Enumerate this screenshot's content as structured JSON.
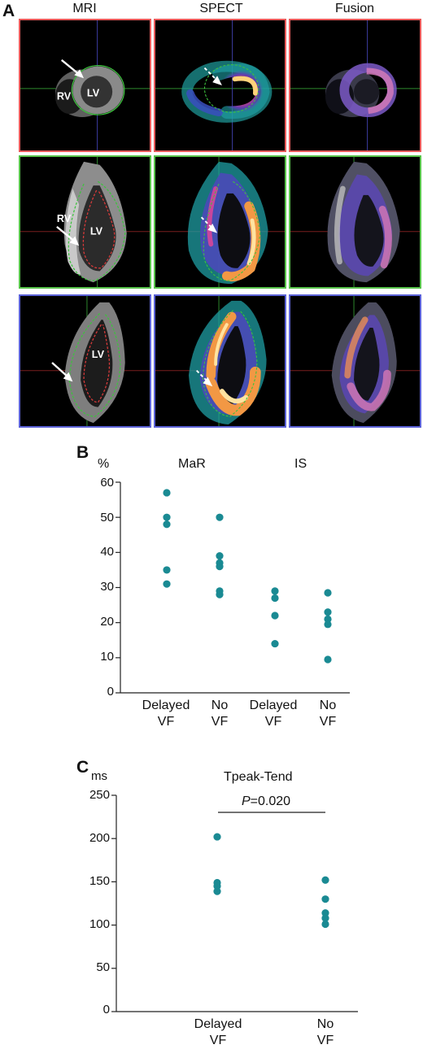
{
  "panel_a": {
    "letter": "A",
    "columns": [
      "MRI",
      "SPECT",
      "Fusion"
    ],
    "labels": {
      "lv": "LV",
      "rv": "RV"
    },
    "row_colors": [
      "#e85a5a",
      "#57c24a",
      "#5b62d6"
    ]
  },
  "panel_b": {
    "letter": "B",
    "unit": "%",
    "groups": [
      "MaR",
      "IS"
    ],
    "cat_lines": [
      [
        "Delayed",
        "VF"
      ],
      [
        "No",
        "VF"
      ],
      [
        "Delayed",
        "VF"
      ],
      [
        "No",
        "VF"
      ]
    ],
    "ticks": [
      "0",
      "10",
      "20",
      "30",
      "40",
      "50",
      "60"
    ]
  },
  "panel_c": {
    "letter": "C",
    "unit": "ms",
    "title": "Tpeak-Tend",
    "p_label": "P",
    "p_value": "=0.020",
    "cat_lines": [
      [
        "Delayed",
        "VF"
      ],
      [
        "No",
        "VF"
      ]
    ],
    "ticks": [
      "0",
      "50",
      "100",
      "150",
      "200",
      "250"
    ]
  },
  "chart_data": [
    {
      "type": "scatter",
      "title": "",
      "ylabel": "%",
      "ylim": [
        0,
        60
      ],
      "categories": [
        "Delayed VF",
        "No VF",
        "Delayed VF",
        "No VF"
      ],
      "series": [
        {
          "name": "MaR",
          "points": [
            {
              "x": "Delayed VF",
              "y": 57
            },
            {
              "x": "Delayed VF",
              "y": 50
            },
            {
              "x": "Delayed VF",
              "y": 48
            },
            {
              "x": "Delayed VF",
              "y": 35
            },
            {
              "x": "Delayed VF",
              "y": 31
            },
            {
              "x": "No VF",
              "y": 50
            },
            {
              "x": "No VF",
              "y": 39
            },
            {
              "x": "No VF",
              "y": 37
            },
            {
              "x": "No VF",
              "y": 36
            },
            {
              "x": "No VF",
              "y": 29
            },
            {
              "x": "No VF",
              "y": 28
            }
          ]
        },
        {
          "name": "IS",
          "points": [
            {
              "x": "Delayed VF",
              "y": 29
            },
            {
              "x": "Delayed VF",
              "y": 27
            },
            {
              "x": "Delayed VF",
              "y": 22
            },
            {
              "x": "Delayed VF",
              "y": 14
            },
            {
              "x": "No VF",
              "y": 28.5
            },
            {
              "x": "No VF",
              "y": 23
            },
            {
              "x": "No VF",
              "y": 21
            },
            {
              "x": "No VF",
              "y": 19.5
            },
            {
              "x": "No VF",
              "y": 9.5
            }
          ]
        }
      ],
      "point_color": "#1a8a93"
    },
    {
      "type": "scatter",
      "title": "Tpeak-Tend",
      "ylabel": "ms",
      "ylim": [
        0,
        250
      ],
      "categories": [
        "Delayed VF",
        "No VF"
      ],
      "series": [
        {
          "name": "Tpeak-Tend",
          "points": [
            {
              "x": "Delayed VF",
              "y": 202
            },
            {
              "x": "Delayed VF",
              "y": 149
            },
            {
              "x": "Delayed VF",
              "y": 145
            },
            {
              "x": "Delayed VF",
              "y": 139
            },
            {
              "x": "No VF",
              "y": 152
            },
            {
              "x": "No VF",
              "y": 130
            },
            {
              "x": "No VF",
              "y": 114
            },
            {
              "x": "No VF",
              "y": 108
            },
            {
              "x": "No VF",
              "y": 101
            }
          ]
        }
      ],
      "annotation": "P=0.020",
      "point_color": "#1a8a93"
    }
  ]
}
